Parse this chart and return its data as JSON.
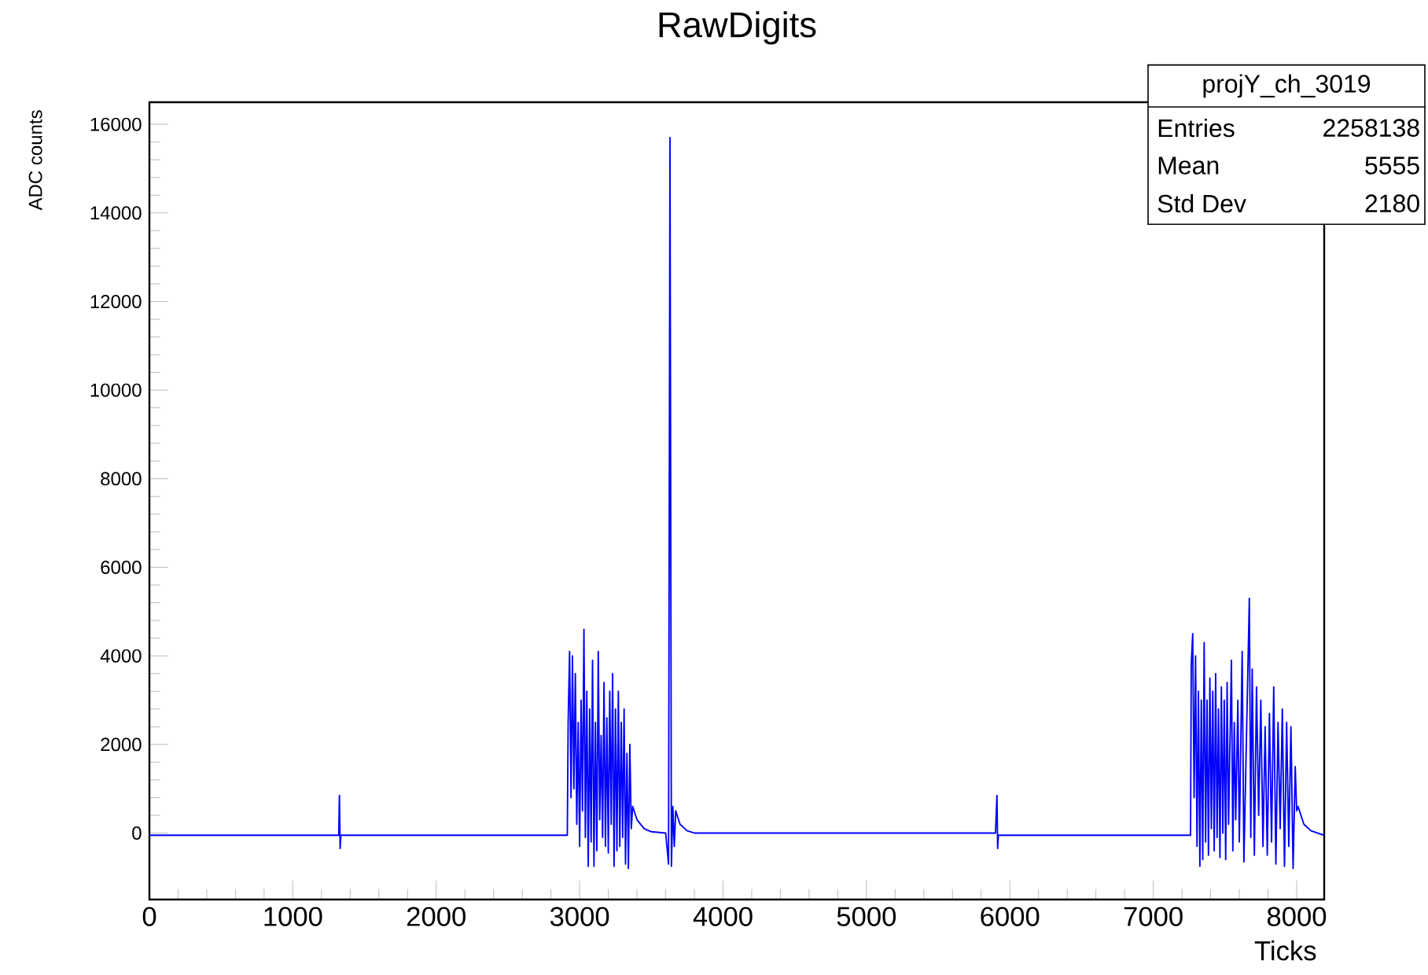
{
  "chart_data": {
    "type": "line",
    "title": "RawDigits",
    "xlabel": "Ticks",
    "ylabel": "ADC counts",
    "xlim": [
      0,
      8192
    ],
    "ylim": [
      -1500,
      16500
    ],
    "xticks": [
      0,
      1000,
      2000,
      3000,
      4000,
      5000,
      6000,
      7000,
      8000
    ],
    "yticks": [
      0,
      2000,
      4000,
      6000,
      8000,
      10000,
      12000,
      14000,
      16000
    ],
    "annotations": [
      "projY_ch_3019",
      "Entries",
      "2258138",
      "Mean",
      "5555",
      "Std Dev",
      "2180"
    ],
    "series": [
      {
        "color": "#0000ff",
        "x": [
          0,
          1320,
          1325,
          1330,
          1335,
          2914,
          2920,
          2930,
          2940,
          2950,
          2960,
          2970,
          2980,
          2990,
          3000,
          3010,
          3020,
          3030,
          3040,
          3050,
          3060,
          3070,
          3080,
          3090,
          3100,
          3110,
          3120,
          3130,
          3140,
          3150,
          3160,
          3170,
          3180,
          3190,
          3200,
          3210,
          3220,
          3230,
          3240,
          3250,
          3260,
          3270,
          3280,
          3290,
          3300,
          3310,
          3320,
          3330,
          3340,
          3350,
          3360,
          3370,
          3400,
          3450,
          3500,
          3600,
          3620,
          3630,
          3640,
          3650,
          3660,
          3670,
          3700,
          3750,
          3800,
          5900,
          5910,
          5915,
          5920,
          7260,
          7265,
          7275,
          7285,
          7295,
          7305,
          7315,
          7325,
          7335,
          7345,
          7355,
          7365,
          7375,
          7385,
          7395,
          7405,
          7415,
          7425,
          7435,
          7445,
          7455,
          7465,
          7475,
          7485,
          7495,
          7505,
          7515,
          7525,
          7545,
          7555,
          7565,
          7575,
          7590,
          7600,
          7620,
          7632,
          7670,
          7680,
          7690,
          7705,
          7720,
          7735,
          7750,
          7765,
          7780,
          7795,
          7810,
          7825,
          7840,
          7855,
          7870,
          7885,
          7900,
          7915,
          7930,
          7945,
          7960,
          7975,
          7990,
          8000,
          8010,
          8050,
          8100,
          8192
        ],
        "values": [
          -50,
          -50,
          850,
          -350,
          -50,
          -50,
          2500,
          4100,
          800,
          4000,
          1000,
          3600,
          200,
          2500,
          -300,
          3000,
          500,
          4600,
          -100,
          3200,
          -750,
          2800,
          -200,
          3900,
          -750,
          2500,
          -400,
          4100,
          300,
          2200,
          -100,
          3400,
          -300,
          2600,
          -450,
          3200,
          200,
          3600,
          -750,
          2800,
          -400,
          3200,
          -300,
          2500,
          -100,
          2800,
          -700,
          1800,
          -800,
          2000,
          100,
          600,
          300,
          100,
          30,
          0,
          -700,
          15700,
          -750,
          600,
          -300,
          500,
          200,
          50,
          0,
          0,
          850,
          -350,
          -50,
          -50,
          3800,
          4500,
          800,
          4000,
          -300,
          3200,
          -750,
          3000,
          -600,
          4300,
          -200,
          3000,
          -500,
          3500,
          100,
          3200,
          -400,
          3600,
          -100,
          2800,
          -550,
          3300,
          0,
          3000,
          -600,
          3400,
          200,
          3900,
          -400,
          2500,
          300,
          3000,
          -200,
          4100,
          -650,
          5300,
          -100,
          3700,
          -500,
          3300,
          400,
          3000,
          -300,
          2400,
          -500,
          2700,
          -200,
          3300,
          -700,
          2500,
          100,
          2800,
          -750,
          2500,
          -300,
          2400,
          -800,
          1500,
          500,
          600,
          200,
          50,
          -50
        ]
      }
    ]
  }
}
